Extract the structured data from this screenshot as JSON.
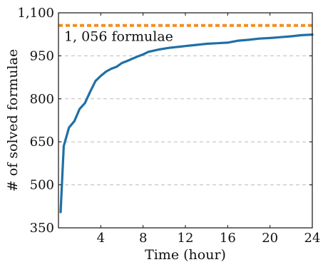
{
  "chart_data": {
    "type": "line",
    "title": "",
    "xlabel": "Time (hour)",
    "ylabel": "# of solved formulae",
    "xlim": [
      0,
      24
    ],
    "ylim": [
      350,
      1100
    ],
    "xticks": [
      4,
      8,
      12,
      16,
      20,
      24
    ],
    "xtick_labels": [
      "4",
      "8",
      "12",
      "16",
      "20",
      "24"
    ],
    "yticks": [
      350,
      500,
      650,
      800,
      950,
      1100
    ],
    "ytick_labels": [
      "350",
      "500",
      "650",
      "800",
      "950",
      "1,100"
    ],
    "grid": "horizontal dashed",
    "colors": {
      "series": "#1f6fa5",
      "reference": "#f28e1c",
      "grid": "#bbbbbb"
    },
    "series": [
      {
        "name": "",
        "x": [
          0.2,
          0.5,
          1.0,
          1.5,
          2.0,
          2.5,
          3.0,
          3.5,
          4.0,
          4.5,
          5.0,
          5.5,
          6.0,
          6.5,
          7.0,
          7.5,
          8.0,
          8.5,
          9.0,
          9.5,
          10.0,
          10.5,
          11.0,
          11.5,
          12.0,
          12.5,
          13.0,
          13.5,
          14.0,
          15.0,
          16.0,
          17.0,
          18.0,
          19.0,
          20.0,
          21.0,
          22.0,
          23.0,
          24.0
        ],
        "values": [
          405,
          635,
          700,
          722,
          765,
          785,
          825,
          862,
          880,
          895,
          905,
          912,
          925,
          932,
          940,
          948,
          955,
          964,
          968,
          972,
          975,
          978,
          980,
          982,
          984,
          986,
          988,
          990,
          992,
          994,
          996,
          1003,
          1006,
          1010,
          1012,
          1015,
          1018,
          1022,
          1024
        ]
      }
    ],
    "reference_line": {
      "value": 1056,
      "label": "1, 056 formulae"
    }
  }
}
